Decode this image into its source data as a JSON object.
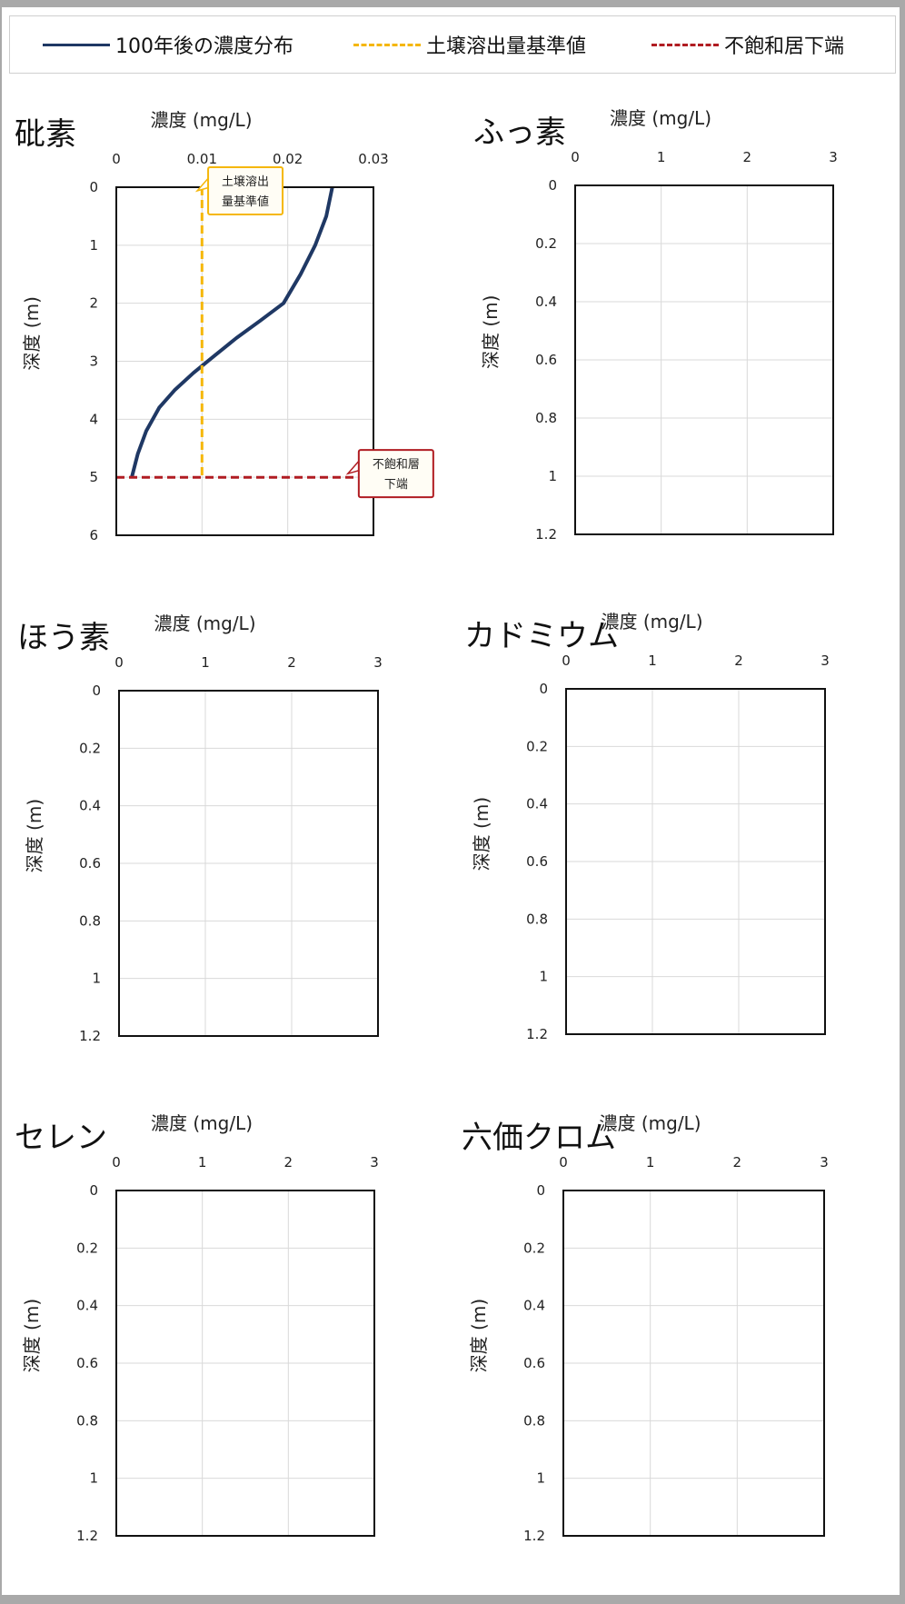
{
  "legend": [
    {
      "label": "100年後の濃度分布",
      "color": "#1f3864",
      "dash": "solid"
    },
    {
      "label": "土壌溶出量基準値",
      "color": "#f5b70a",
      "dash": "dashed"
    },
    {
      "label": "不飽和居下端",
      "color": "#b01c22",
      "dash": "dashed"
    }
  ],
  "chart_data": [
    {
      "type": "line",
      "title": "砒素",
      "xlabel": "濃度 (mg/L)",
      "ylabel": "深度 (m)",
      "xlim": [
        0,
        0.03
      ],
      "ylim": [
        0,
        6
      ],
      "y_inverted": true,
      "x_ticks": [
        "0",
        "0.01",
        "0.02",
        "0.03"
      ],
      "y_ticks": [
        "0",
        "1",
        "2",
        "3",
        "4",
        "5",
        "6"
      ],
      "grid": true,
      "series": [
        {
          "name": "100年後の濃度分布",
          "color": "#1f3864",
          "dash": "solid",
          "points": [
            [
              0.0252,
              0
            ],
            [
              0.0245,
              0.5
            ],
            [
              0.0232,
              1.0
            ],
            [
              0.0215,
              1.5
            ],
            [
              0.0195,
              2.0
            ],
            [
              0.0168,
              2.3
            ],
            [
              0.014,
              2.6
            ],
            [
              0.0115,
              2.9
            ],
            [
              0.009,
              3.2
            ],
            [
              0.0068,
              3.5
            ],
            [
              0.005,
              3.8
            ],
            [
              0.0035,
              4.2
            ],
            [
              0.0025,
              4.6
            ],
            [
              0.0018,
              5.0
            ]
          ]
        },
        {
          "name": "土壌溶出量基準値",
          "color": "#f5b70a",
          "dash": "dashed",
          "points": [
            [
              0.01,
              0
            ],
            [
              0.01,
              5.0
            ]
          ]
        },
        {
          "name": "不飽和居下端",
          "color": "#b01c22",
          "dash": "dashed",
          "points": [
            [
              0,
              5.0
            ],
            [
              0.028,
              5.0
            ]
          ]
        }
      ],
      "annotations": [
        {
          "text": [
            "土壌溶出",
            "量基準値"
          ],
          "border": "#f5b70a",
          "x": 0.0105,
          "y": 0.0
        },
        {
          "text": [
            "不飽和層",
            "下端"
          ],
          "border": "#b01c22",
          "x": 0.0285,
          "y": 5.0
        }
      ]
    },
    {
      "type": "line",
      "title": "ふっ素",
      "xlabel": "濃度 (mg/L)",
      "ylabel": "深度 (m)",
      "xlim": [
        0,
        3
      ],
      "ylim": [
        0,
        1.2
      ],
      "y_inverted": true,
      "x_ticks": [
        "0",
        "1",
        "2",
        "3"
      ],
      "y_ticks": [
        "0",
        "0.2",
        "0.4",
        "0.6",
        "0.8",
        "1",
        "1.2"
      ],
      "grid": true,
      "series": [],
      "annotations": []
    },
    {
      "type": "line",
      "title": "ほう素",
      "xlabel": "濃度 (mg/L)",
      "ylabel": "深度 (m)",
      "xlim": [
        0,
        3
      ],
      "ylim": [
        0,
        1.2
      ],
      "y_inverted": true,
      "x_ticks": [
        "0",
        "1",
        "2",
        "3"
      ],
      "y_ticks": [
        "0",
        "0.2",
        "0.4",
        "0.6",
        "0.8",
        "1",
        "1.2"
      ],
      "grid": true,
      "series": [],
      "annotations": []
    },
    {
      "type": "line",
      "title": "カドミウム",
      "xlabel": "濃度 (mg/L)",
      "ylabel": "深度 (m)",
      "xlim": [
        0,
        3
      ],
      "ylim": [
        0,
        1.2
      ],
      "y_inverted": true,
      "x_ticks": [
        "0",
        "1",
        "2",
        "3"
      ],
      "y_ticks": [
        "0",
        "0.2",
        "0.4",
        "0.6",
        "0.8",
        "1",
        "1.2"
      ],
      "grid": true,
      "series": [],
      "annotations": []
    },
    {
      "type": "line",
      "title": "セレン",
      "xlabel": "濃度 (mg/L)",
      "ylabel": "深度 (m)",
      "xlim": [
        0,
        3
      ],
      "ylim": [
        0,
        1.2
      ],
      "y_inverted": true,
      "x_ticks": [
        "0",
        "1",
        "2",
        "3"
      ],
      "y_ticks": [
        "0",
        "0.2",
        "0.4",
        "0.6",
        "0.8",
        "1",
        "1.2"
      ],
      "grid": true,
      "series": [],
      "annotations": []
    },
    {
      "type": "line",
      "title": "六価クロム",
      "xlabel": "濃度 (mg/L)",
      "ylabel": "深度 (m)",
      "xlim": [
        0,
        3
      ],
      "ylim": [
        0,
        1.2
      ],
      "y_inverted": true,
      "x_ticks": [
        "0",
        "1",
        "2",
        "3"
      ],
      "y_ticks": [
        "0",
        "0.2",
        "0.4",
        "0.6",
        "0.8",
        "1",
        "1.2"
      ],
      "grid": true,
      "series": [],
      "annotations": []
    }
  ]
}
